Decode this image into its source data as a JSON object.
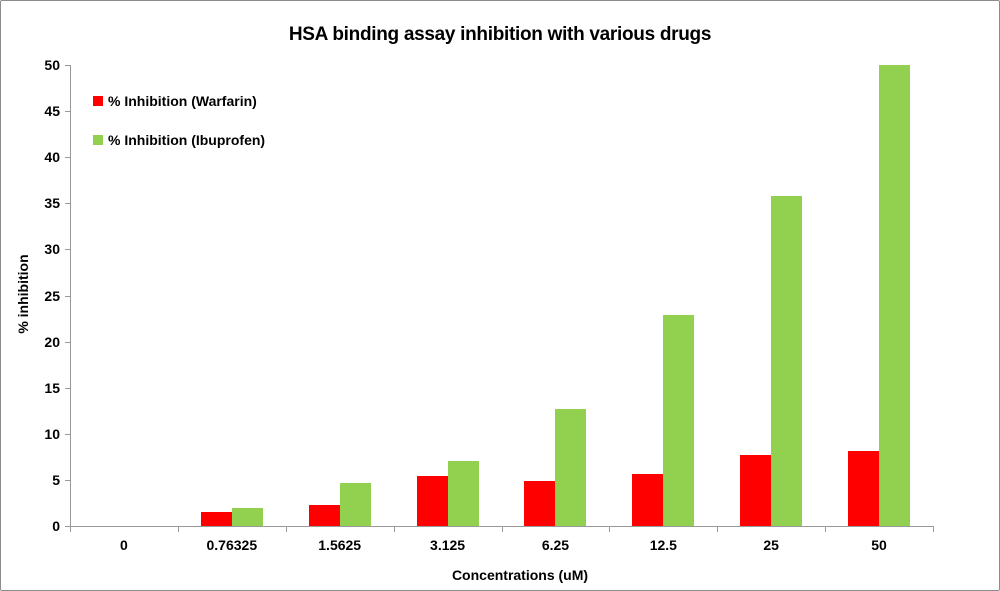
{
  "chart_data": {
    "type": "bar",
    "title": "HSA binding assay inhibition with various drugs",
    "xlabel": "Concentrations (uM)",
    "ylabel": "% inhibition",
    "ylim": [
      0,
      50
    ],
    "yticks": [
      0,
      5,
      10,
      15,
      20,
      25,
      30,
      35,
      40,
      45,
      50
    ],
    "grid": false,
    "legend_position": "upper left (inside plot)",
    "categories": [
      "0",
      "0.76325",
      "1.5625",
      "3.125",
      "6.25",
      "12.5",
      "25",
      "50"
    ],
    "series": [
      {
        "name": "% Inhibition (Warfarin)",
        "color": "#ff0000",
        "values": [
          0,
          1.5,
          2.3,
          5.4,
          4.9,
          5.6,
          7.7,
          8.1
        ]
      },
      {
        "name": "% Inhibition (Ibuprofen)",
        "color": "#92d050",
        "values": [
          0,
          1.9,
          4.7,
          7.1,
          12.7,
          22.9,
          35.8,
          50.0
        ]
      }
    ]
  }
}
